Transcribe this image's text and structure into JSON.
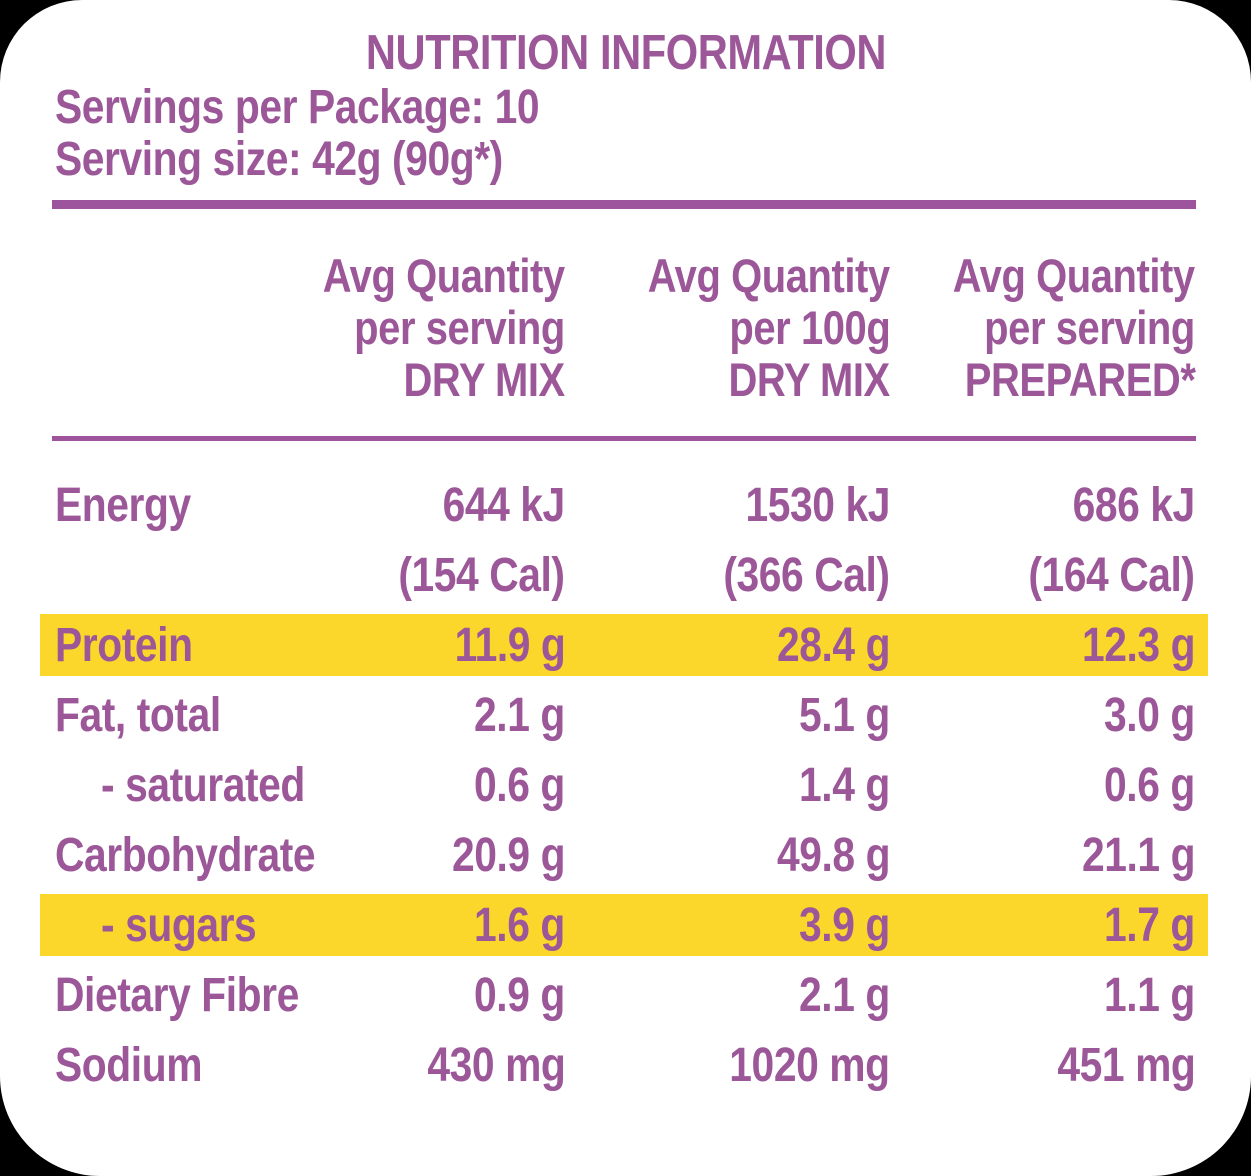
{
  "colors": {
    "purple_text": "#9c5799",
    "purple_rule": "#9d549d",
    "highlight_yellow": "#fbd72b",
    "panel_background": "#ffffff",
    "outer_background": "#000000"
  },
  "panel": {
    "title": "NUTRITION INFORMATION",
    "servings_line": "Servings per Package: 10",
    "serving_size_line": "Serving size: 42g (90g*)"
  },
  "table": {
    "columns": [
      {
        "lines": [
          "Avg Quantity",
          "per serving",
          "DRY MIX"
        ]
      },
      {
        "lines": [
          "Avg Quantity",
          "per 100g",
          "DRY MIX"
        ]
      },
      {
        "lines": [
          "Avg Quantity",
          "per serving",
          "PREPARED*"
        ]
      }
    ],
    "rows": [
      {
        "label": "Energy",
        "values": [
          "644 kJ",
          "1530 kJ",
          "686 kJ"
        ]
      },
      {
        "label": "",
        "values": [
          "(154 Cal)",
          "(366 Cal)",
          "(164 Cal)"
        ]
      },
      {
        "label": "Protein",
        "values": [
          "11.9 g",
          "28.4 g",
          "12.3 g"
        ],
        "highlight": true
      },
      {
        "label": "Fat, total",
        "values": [
          "2.1 g",
          "5.1 g",
          "3.0 g"
        ]
      },
      {
        "label": "- saturated",
        "values": [
          "0.6 g",
          "1.4 g",
          "0.6 g"
        ],
        "indent": true
      },
      {
        "label": "Carbohydrate",
        "values": [
          "20.9 g",
          "49.8 g",
          "21.1 g"
        ]
      },
      {
        "label": "- sugars",
        "values": [
          "1.6 g",
          "3.9 g",
          "1.7 g"
        ],
        "highlight": true,
        "indent": true
      },
      {
        "label": "Dietary Fibre",
        "values": [
          "0.9 g",
          "2.1 g",
          "1.1 g"
        ]
      },
      {
        "label": "Sodium",
        "values": [
          "430 mg",
          "1020 mg",
          "451 mg"
        ]
      }
    ]
  }
}
